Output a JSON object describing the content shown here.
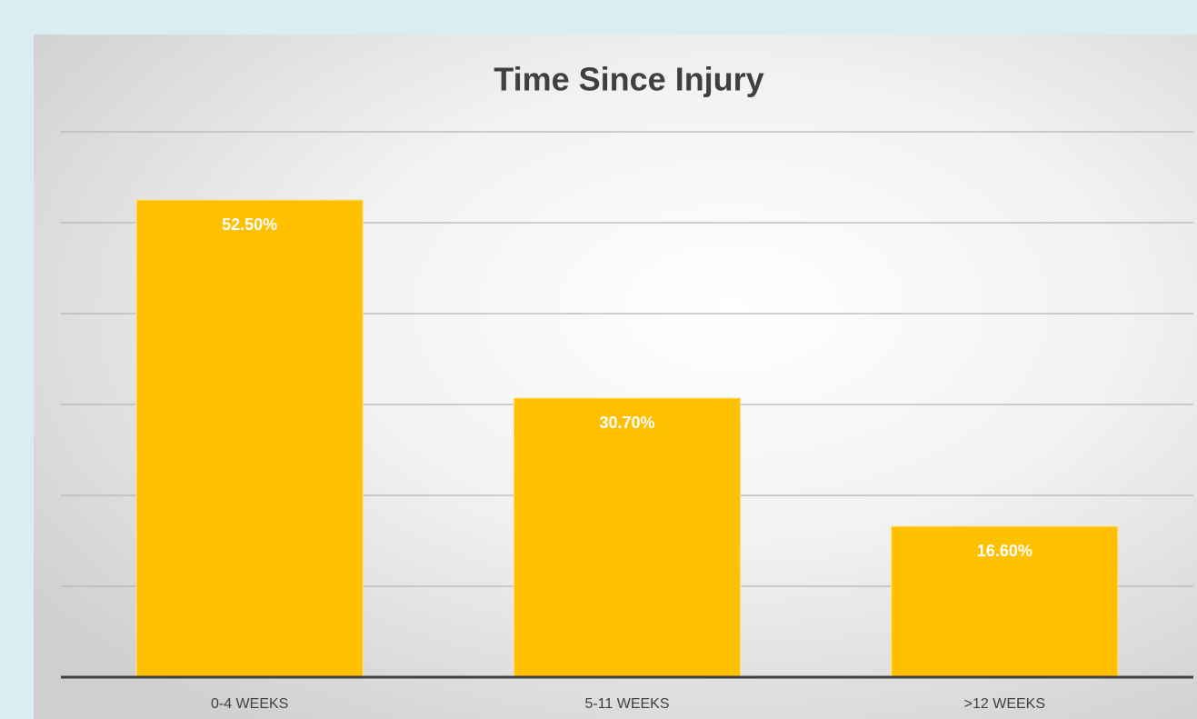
{
  "chart_data": {
    "type": "bar",
    "title": "Time Since Injury",
    "categories": [
      "0-4 WEEKS",
      "5-11 WEEKS",
      ">12 WEEKS"
    ],
    "values": [
      52.5,
      30.7,
      16.6
    ],
    "value_labels": [
      "52.50%",
      "30.70%",
      "16.60%"
    ],
    "color": "#ffc000",
    "ylim": [
      0,
      60
    ],
    "yticks": [
      0,
      10,
      20,
      30,
      40,
      50,
      60
    ],
    "grid": true
  }
}
